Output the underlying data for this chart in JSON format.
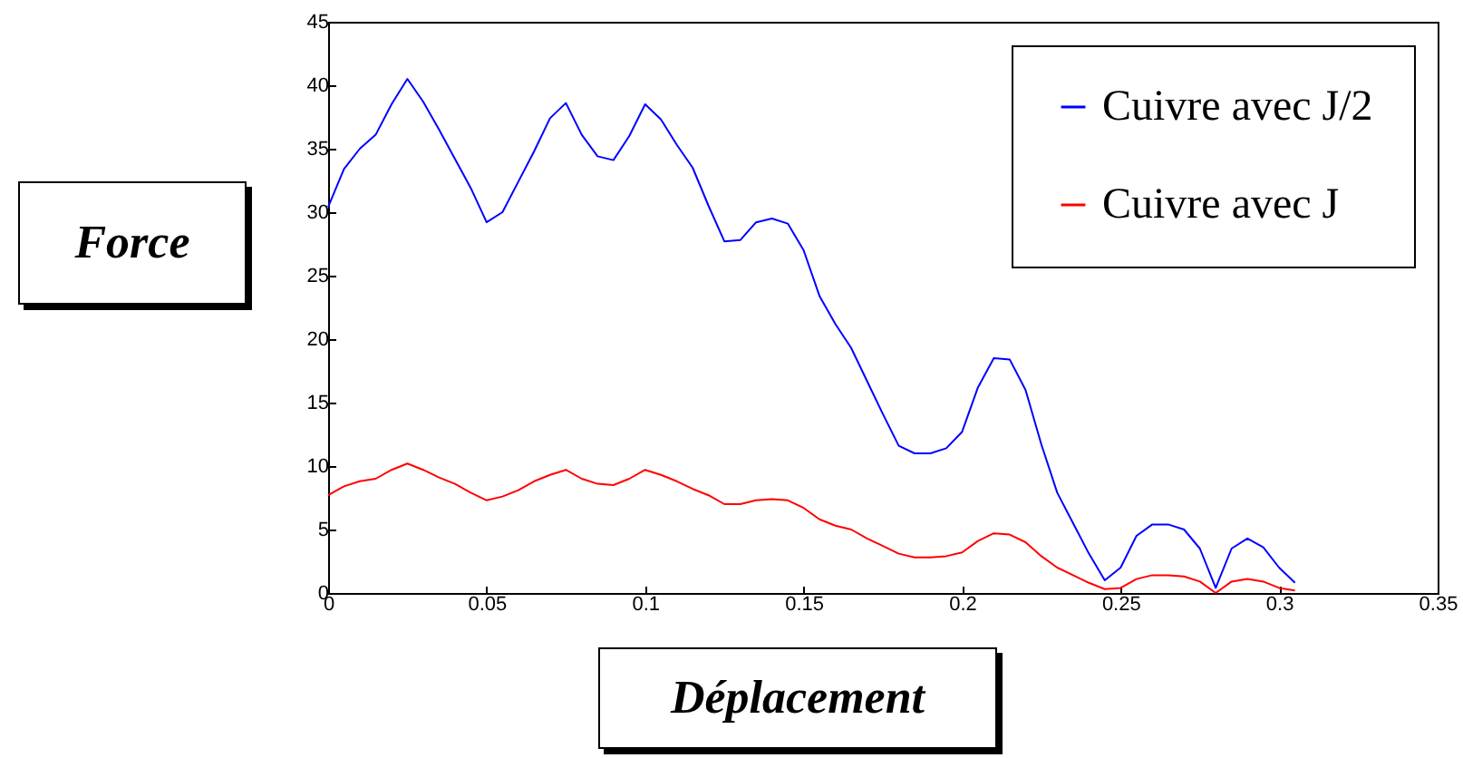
{
  "chart_data": {
    "type": "line",
    "xlabel": "Déplacement",
    "ylabel": "Force",
    "x": [
      0,
      0.005,
      0.01,
      0.015,
      0.02,
      0.025,
      0.03,
      0.035,
      0.04,
      0.045,
      0.05,
      0.055,
      0.06,
      0.065,
      0.07,
      0.075,
      0.08,
      0.085,
      0.09,
      0.095,
      0.1,
      0.105,
      0.11,
      0.115,
      0.12,
      0.125,
      0.13,
      0.135,
      0.14,
      0.145,
      0.15,
      0.155,
      0.16,
      0.165,
      0.17,
      0.175,
      0.18,
      0.185,
      0.19,
      0.195,
      0.2,
      0.205,
      0.21,
      0.215,
      0.22,
      0.225,
      0.23,
      0.235,
      0.24,
      0.245,
      0.25,
      0.255,
      0.26,
      0.265,
      0.27,
      0.275,
      0.28,
      0.285,
      0.29,
      0.295,
      0.3,
      0.305
    ],
    "series": [
      {
        "name": "Cuivre avec J/2",
        "color": "#0000ff",
        "values": [
          30.4,
          33.4,
          35.0,
          36.1,
          38.5,
          40.5,
          38.7,
          36.5,
          34.2,
          31.9,
          29.2,
          30.0,
          32.4,
          34.8,
          37.4,
          38.6,
          36.1,
          34.4,
          34.1,
          36.0,
          38.5,
          37.3,
          35.3,
          33.5,
          30.5,
          27.7,
          27.8,
          29.2,
          29.5,
          29.1,
          27.0,
          23.4,
          21.2,
          19.3,
          16.7,
          14.1,
          11.6,
          11.0,
          11.0,
          11.4,
          12.7,
          16.2,
          18.5,
          18.4,
          16.0,
          11.7,
          7.9,
          5.5,
          3.1,
          1.0,
          2.0,
          4.5,
          5.4,
          5.4,
          5.0,
          3.5,
          0.4,
          3.5,
          4.3,
          3.6,
          2.0,
          0.8
        ]
      },
      {
        "name": "Cuivre avec J",
        "color": "#ff0000",
        "values": [
          7.7,
          8.4,
          8.8,
          9.0,
          9.7,
          10.2,
          9.7,
          9.1,
          8.6,
          7.9,
          7.3,
          7.6,
          8.1,
          8.8,
          9.3,
          9.7,
          9.0,
          8.6,
          8.5,
          9.0,
          9.7,
          9.3,
          8.8,
          8.2,
          7.7,
          7.0,
          7.0,
          7.3,
          7.4,
          7.3,
          6.7,
          5.8,
          5.3,
          5.0,
          4.3,
          3.7,
          3.1,
          2.8,
          2.8,
          2.9,
          3.2,
          4.1,
          4.7,
          4.6,
          4.0,
          2.9,
          2.0,
          1.4,
          0.8,
          0.3,
          0.4,
          1.1,
          1.4,
          1.4,
          1.3,
          0.9,
          0.0,
          0.9,
          1.1,
          0.9,
          0.4,
          0.2
        ]
      }
    ],
    "xlim": [
      0,
      0.35
    ],
    "xticks": [
      0,
      0.05,
      0.1,
      0.15,
      0.2,
      0.25,
      0.3,
      0.35
    ],
    "ylim": [
      0,
      45
    ],
    "yticks": [
      0,
      5,
      10,
      15,
      20,
      25,
      30,
      35,
      40,
      45
    ],
    "grid": false,
    "legend": "top right"
  }
}
